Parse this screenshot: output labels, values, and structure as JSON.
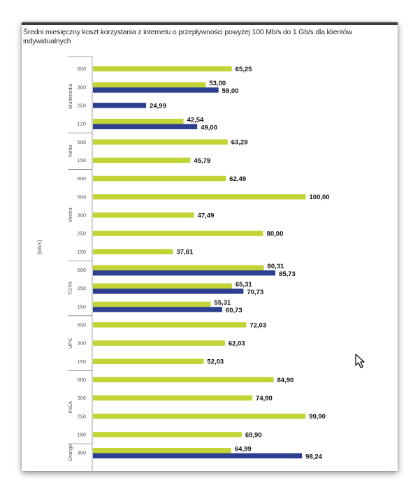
{
  "chart_data": {
    "type": "bar",
    "orientation": "horizontal",
    "title": "Średni miesięczny koszt korzystania z internetu o przepływności powyżej 100 Mb/s do 1 Gb/s dla klientów indywidualnych",
    "ylabel": "[Mb/s]",
    "xlim": [
      0,
      100
    ],
    "grid": false,
    "colors": {
      "lime": "#c2d435",
      "navy": "#2e3f8f"
    },
    "groups": [
      {
        "name": "Multimedia",
        "rows": [
          {
            "tick": "600",
            "bars": [
              {
                "series": "lime",
                "value": 65.25,
                "label": "65,25"
              }
            ]
          },
          {
            "tick": "300",
            "bars": [
              {
                "series": "lime",
                "value": 53.0,
                "label": "53,00"
              },
              {
                "series": "navy",
                "value": 59.0,
                "label": "59,00"
              }
            ]
          },
          {
            "tick": "250",
            "bars": [
              {
                "series": "navy",
                "value": 24.99,
                "label": "24,99"
              }
            ]
          },
          {
            "tick": "120",
            "bars": [
              {
                "series": "lime",
                "value": 42.54,
                "label": "42,54"
              },
              {
                "series": "navy",
                "value": 49.0,
                "label": "49,00"
              }
            ]
          }
        ]
      },
      {
        "name": "Netia",
        "rows": [
          {
            "tick": "500",
            "bars": [
              {
                "series": "lime",
                "value": 63.29,
                "label": "63,29"
              }
            ]
          },
          {
            "tick": "150",
            "bars": [
              {
                "series": "lime",
                "value": 45.79,
                "label": "45,79"
              }
            ]
          }
        ]
      },
      {
        "name": "Vectra",
        "rows": [
          {
            "tick": "600",
            "bars": [
              {
                "series": "lime",
                "value": 62.49,
                "label": "62,49"
              }
            ]
          },
          {
            "tick": "500",
            "bars": [
              {
                "series": "lime",
                "value": 100.0,
                "label": "100,00"
              }
            ]
          },
          {
            "tick": "300",
            "bars": [
              {
                "series": "lime",
                "value": 47.49,
                "label": "47,49"
              }
            ]
          },
          {
            "tick": "250",
            "bars": [
              {
                "series": "lime",
                "value": 80.0,
                "label": "80,00"
              }
            ]
          },
          {
            "tick": "150",
            "bars": [
              {
                "series": "lime",
                "value": 37.61,
                "label": "37,61"
              }
            ]
          }
        ]
      },
      {
        "name": "TOYA",
        "rows": [
          {
            "tick": "600",
            "bars": [
              {
                "series": "lime",
                "value": 80.31,
                "label": "80,31"
              },
              {
                "series": "navy",
                "value": 85.73,
                "label": "85,73"
              }
            ]
          },
          {
            "tick": "250",
            "bars": [
              {
                "series": "lime",
                "value": 65.31,
                "label": "65,31"
              },
              {
                "series": "navy",
                "value": 70.73,
                "label": "70,73"
              }
            ]
          },
          {
            "tick": "150",
            "bars": [
              {
                "series": "lime",
                "value": 55.31,
                "label": "55,31"
              },
              {
                "series": "navy",
                "value": 60.73,
                "label": "60,73"
              }
            ]
          }
        ]
      },
      {
        "name": "UPC",
        "rows": [
          {
            "tick": "500",
            "bars": [
              {
                "series": "lime",
                "value": 72.03,
                "label": "72,03"
              }
            ]
          },
          {
            "tick": "300",
            "bars": [
              {
                "series": "lime",
                "value": 62.03,
                "label": "62,03"
              }
            ]
          },
          {
            "tick": "150",
            "bars": [
              {
                "series": "lime",
                "value": 52.03,
                "label": "52,03"
              }
            ]
          }
        ]
      },
      {
        "name": "INEA",
        "rows": [
          {
            "tick": "600",
            "bars": [
              {
                "series": "lime",
                "value": 84.9,
                "label": "84,90"
              }
            ]
          },
          {
            "tick": "300",
            "bars": [
              {
                "series": "lime",
                "value": 74.9,
                "label": "74,90"
              }
            ]
          },
          {
            "tick": "250",
            "bars": [
              {
                "series": "lime",
                "value": 99.9,
                "label": "99,90"
              }
            ]
          },
          {
            "tick": "180",
            "bars": [
              {
                "series": "lime",
                "value": 69.9,
                "label": "69,90"
              }
            ]
          }
        ]
      },
      {
        "name": "Orange",
        "rows": [
          {
            "tick": "300",
            "bars": [
              {
                "series": "lime",
                "value": 64.99,
                "label": "64,99"
              },
              {
                "series": "navy",
                "value": 98.24,
                "label": "98,24"
              }
            ]
          }
        ]
      }
    ]
  }
}
